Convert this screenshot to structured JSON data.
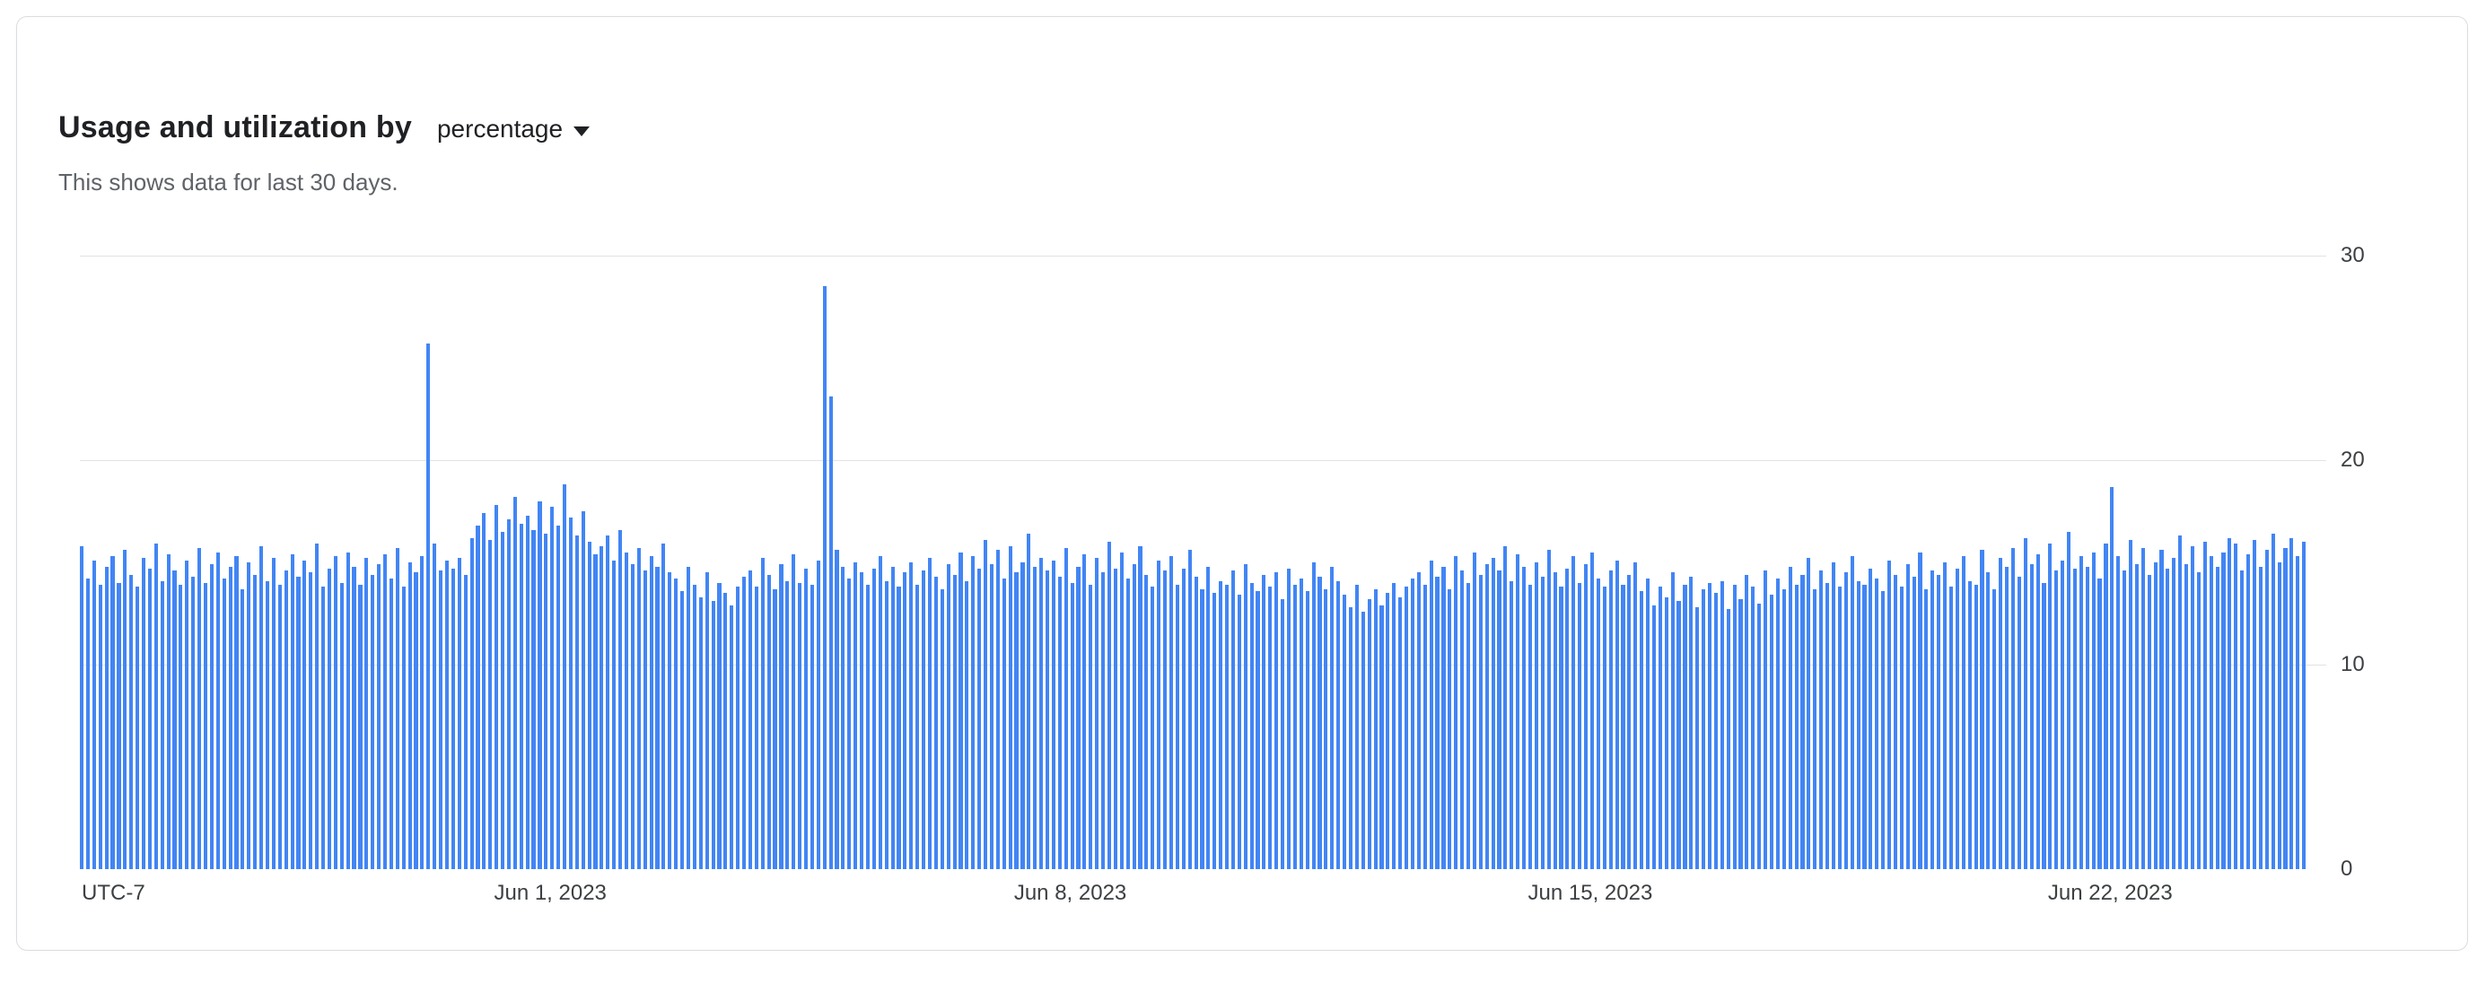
{
  "card": {
    "title": "Usage and utilization by",
    "metric_dropdown": {
      "selected": "percentage"
    },
    "subtitle": "This shows data for last 30 days."
  },
  "chart_data": {
    "type": "bar",
    "title": "Usage and utilization by percentage",
    "unit": "percent",
    "ylim": [
      0,
      30
    ],
    "y_ticks": [
      30,
      20,
      10,
      0
    ],
    "grid": true,
    "legend": "none",
    "timezone_label": "UTC-7",
    "bar_count": 360,
    "x_ticks": [
      {
        "label": "Jun 1, 2023",
        "index": 76
      },
      {
        "label": "Jun 8, 2023",
        "index": 160
      },
      {
        "label": "Jun 15, 2023",
        "index": 244
      },
      {
        "label": "Jun 22, 2023",
        "index": 328
      }
    ],
    "colors": {
      "bar": "#4285f4",
      "gridline": "#e3e3e3",
      "axis_text": "#3c4043"
    },
    "values": [
      15.8,
      14.2,
      15.1,
      13.9,
      14.8,
      15.3,
      14.0,
      15.6,
      14.4,
      13.8,
      15.2,
      14.7,
      15.9,
      14.1,
      15.4,
      14.6,
      13.9,
      15.1,
      14.3,
      15.7,
      14.0,
      14.9,
      15.5,
      14.2,
      14.8,
      15.3,
      13.7,
      15.0,
      14.4,
      15.8,
      14.1,
      15.2,
      13.9,
      14.6,
      15.4,
      14.3,
      15.1,
      14.5,
      15.9,
      13.8,
      14.7,
      15.3,
      14.0,
      15.5,
      14.8,
      13.9,
      15.2,
      14.4,
      14.9,
      15.4,
      14.2,
      15.7,
      13.8,
      15.0,
      14.5,
      15.3,
      25.7,
      15.9,
      14.6,
      15.1,
      14.7,
      15.2,
      14.4,
      16.2,
      16.8,
      17.4,
      16.1,
      17.8,
      16.5,
      17.1,
      18.2,
      16.9,
      17.3,
      16.6,
      18.0,
      16.4,
      17.7,
      16.8,
      18.8,
      17.2,
      16.3,
      17.5,
      16.0,
      15.4,
      15.8,
      16.3,
      15.1,
      16.6,
      15.5,
      14.9,
      15.7,
      14.6,
      15.3,
      14.8,
      15.9,
      14.5,
      14.2,
      13.6,
      14.8,
      13.9,
      13.3,
      14.5,
      13.1,
      14.0,
      13.5,
      12.9,
      13.8,
      14.3,
      14.6,
      13.8,
      15.2,
      14.4,
      13.7,
      14.9,
      14.1,
      15.4,
      14.0,
      14.7,
      13.9,
      15.1,
      28.5,
      23.1,
      15.6,
      14.8,
      14.2,
      15.0,
      14.5,
      13.9,
      14.7,
      15.3,
      14.1,
      14.8,
      13.8,
      14.5,
      15.0,
      13.9,
      14.6,
      15.2,
      14.3,
      13.7,
      14.9,
      14.4,
      15.5,
      14.1,
      15.3,
      14.7,
      16.1,
      14.9,
      15.6,
      14.2,
      15.8,
      14.5,
      15.0,
      16.4,
      14.8,
      15.2,
      14.6,
      15.1,
      14.3,
      15.7,
      14.0,
      14.8,
      15.4,
      13.9,
      15.2,
      14.5,
      16.0,
      14.7,
      15.5,
      14.2,
      14.9,
      15.8,
      14.4,
      13.8,
      15.1,
      14.6,
      15.3,
      13.9,
      14.7,
      15.6,
      14.3,
      13.7,
      14.8,
      13.5,
      14.1,
      13.9,
      14.6,
      13.4,
      14.9,
      14.0,
      13.6,
      14.4,
      13.8,
      14.5,
      13.2,
      14.7,
      13.9,
      14.2,
      13.6,
      15.0,
      14.3,
      13.7,
      14.8,
      14.1,
      13.4,
      12.8,
      13.9,
      12.6,
      13.2,
      13.7,
      12.9,
      13.5,
      14.0,
      13.3,
      13.8,
      14.2,
      14.5,
      13.9,
      15.1,
      14.3,
      14.8,
      13.7,
      15.3,
      14.6,
      14.0,
      15.5,
      14.4,
      14.9,
      15.2,
      14.6,
      15.8,
      14.1,
      15.4,
      14.8,
      13.9,
      15.0,
      14.3,
      15.6,
      14.5,
      13.8,
      14.7,
      15.3,
      14.0,
      14.9,
      15.5,
      14.2,
      13.8,
      14.6,
      15.1,
      13.9,
      14.4,
      15.0,
      13.6,
      14.2,
      12.9,
      13.8,
      13.3,
      14.5,
      13.1,
      13.9,
      14.3,
      12.8,
      13.7,
      14.0,
      13.5,
      14.1,
      12.7,
      13.9,
      13.2,
      14.4,
      13.8,
      13.0,
      14.6,
      13.4,
      14.2,
      13.7,
      14.8,
      13.9,
      14.4,
      15.2,
      13.7,
      14.6,
      14.0,
      15.0,
      13.8,
      14.5,
      15.3,
      14.1,
      13.9,
      14.7,
      14.2,
      13.6,
      15.1,
      14.4,
      13.8,
      14.9,
      14.3,
      15.5,
      13.7,
      14.6,
      14.4,
      15.0,
      13.8,
      14.7,
      15.3,
      14.1,
      13.9,
      15.6,
      14.5,
      13.7,
      15.2,
      14.8,
      15.7,
      14.3,
      16.2,
      14.9,
      15.4,
      14.0,
      15.9,
      14.6,
      15.1,
      16.5,
      14.7,
      15.3,
      14.8,
      15.5,
      14.2,
      15.9,
      18.7,
      15.3,
      14.6,
      16.1,
      14.9,
      15.7,
      14.4,
      15.0,
      15.6,
      14.7,
      15.2,
      16.3,
      14.9,
      15.8,
      14.5,
      16.0,
      15.3,
      14.8,
      15.5,
      16.2,
      15.9,
      14.6,
      15.4,
      16.1,
      14.8,
      15.6,
      16.4,
      15.0,
      15.7,
      16.2,
      15.3,
      16.0
    ]
  }
}
